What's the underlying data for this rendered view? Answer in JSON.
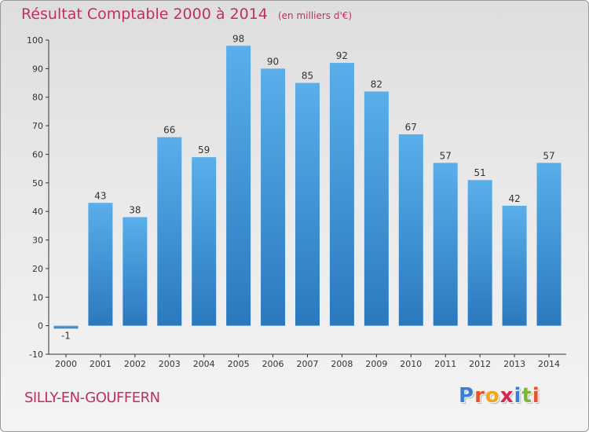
{
  "chart_data": {
    "type": "bar",
    "title": "Résultat Comptable 2000 à 2014",
    "subtitle": "(en milliers d'€)",
    "categories": [
      "2000",
      "2001",
      "2002",
      "2003",
      "2004",
      "2005",
      "2006",
      "2007",
      "2008",
      "2009",
      "2010",
      "2011",
      "2012",
      "2013",
      "2014"
    ],
    "values": [
      -1,
      43,
      38,
      66,
      59,
      98,
      90,
      85,
      92,
      82,
      67,
      57,
      51,
      42,
      57
    ],
    "data_labels": [
      "-1",
      "43",
      "38",
      "66",
      "59",
      "98",
      "90",
      "85",
      "92",
      "82",
      "67",
      "57",
      "51",
      "42",
      "57"
    ],
    "ylim": [
      -10,
      100
    ],
    "yticks": [
      -10,
      0,
      10,
      20,
      30,
      40,
      50,
      60,
      70,
      80,
      90,
      100
    ],
    "xlabel": "",
    "ylabel": "",
    "grid": false,
    "colors": {
      "bar_top": "#5aaeea",
      "bar_bottom": "#2a79be",
      "axis": "#333333",
      "text": "#333333"
    }
  },
  "footer": {
    "city": "SILLY-EN-GOUFFERN",
    "logo_letters": [
      "P",
      "r",
      "o",
      "x",
      "i",
      "t",
      "i"
    ],
    "logo_colors": [
      "#3b7fd4",
      "#e8532a",
      "#f2a516",
      "#d6254f",
      "#3b7fd4",
      "#7cb82f",
      "#e8532a"
    ]
  },
  "theme": {
    "accent": "#c0305a"
  }
}
